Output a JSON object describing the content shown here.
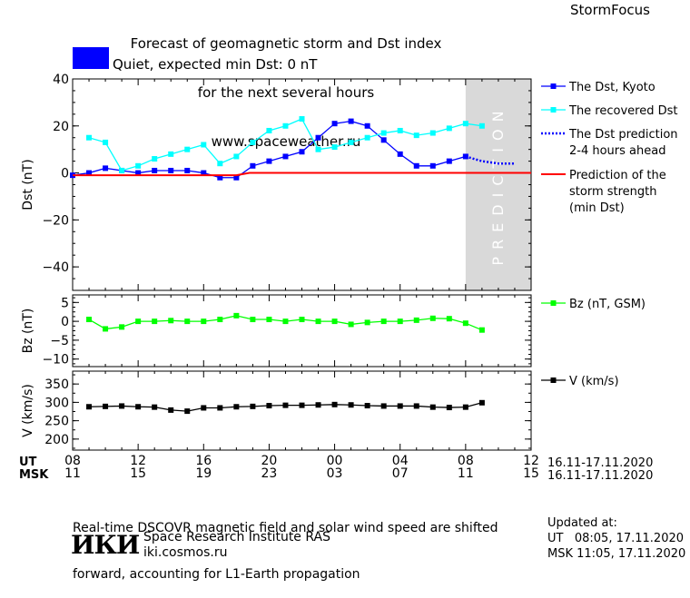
{
  "header": {
    "title_lines": [
      "Forecast of geomagnetic storm and Dst index",
      "for the next several hours",
      "www.spaceweather.ru"
    ],
    "brand": "StormFocus",
    "status_text": "Quiet, expected min Dst: 0 nT",
    "status_color": "#0000ff"
  },
  "footer": {
    "note_lines": [
      "Real-time DSCOVR magnetic field and solar wind speed are shifted",
      "forward, accounting for L1-Earth propagation"
    ],
    "institute_logo": "ИКИ",
    "institute_name": "Space Research Institute RAS",
    "institute_url": "iki.cosmos.ru",
    "updated_label": "Updated at:",
    "updated_ut": "UT   08:05, 17.11.2020",
    "updated_msk": "MSK 11:05, 17.11.2020"
  },
  "time_axis": {
    "ut_label": "UT",
    "msk_label": "MSK",
    "ut_ticks": [
      "08",
      "12",
      "16",
      "20",
      "00",
      "04",
      "08",
      "12"
    ],
    "msk_ticks": [
      "11",
      "15",
      "19",
      "23",
      "03",
      "07",
      "11",
      "15"
    ],
    "ut_range": "16.11-17.11.2020",
    "msk_range": "16.11-17.11.2020"
  },
  "chart_data": [
    {
      "type": "line",
      "ylabel": "Dst (nT)",
      "ylim": [
        -50,
        40
      ],
      "yticks": [
        40,
        20,
        0,
        -20,
        -40
      ],
      "xlim_hours": [
        0,
        28
      ],
      "prediction_band_label": "PREDICTION",
      "prediction_band_hours": [
        24,
        28
      ],
      "series": [
        {
          "name": "The Dst, Kyoto",
          "color": "#0000ff",
          "marker": "square",
          "style": "solid",
          "x": [
            0,
            1,
            2,
            3,
            4,
            5,
            6,
            7,
            8,
            9,
            10,
            11,
            12,
            13,
            14,
            15,
            16,
            17,
            18,
            19,
            20,
            21,
            22,
            23,
            24
          ],
          "y": [
            -1,
            0,
            2,
            1,
            0,
            1,
            1,
            1,
            0,
            -2,
            -2,
            3,
            5,
            7,
            9,
            15,
            21,
            22,
            20,
            14,
            8,
            3,
            3,
            5,
            7
          ]
        },
        {
          "name": "The recovered Dst",
          "color": "#00ffff",
          "marker": "square",
          "style": "solid",
          "x": [
            1,
            2,
            3,
            4,
            5,
            6,
            7,
            8,
            9,
            10,
            11,
            12,
            13,
            14,
            15,
            16,
            17,
            18,
            19,
            20,
            21,
            22,
            23,
            24,
            25
          ],
          "y": [
            15,
            13,
            1,
            3,
            6,
            8,
            10,
            12,
            4,
            7,
            13,
            18,
            20,
            23,
            10,
            11,
            13,
            15,
            17,
            18,
            16,
            17,
            19,
            21,
            20
          ]
        },
        {
          "name": "The Dst prediction 2-4 hours ahead",
          "color": "#0000ff",
          "marker": "none",
          "style": "dotted",
          "x": [
            24,
            25,
            26,
            27
          ],
          "y": [
            7,
            5,
            4,
            4
          ]
        },
        {
          "name": "Prediction of the storm strength (min Dst)",
          "color": "#ff0000",
          "marker": "none",
          "style": "solid",
          "x": [
            0,
            10,
            10.8,
            28
          ],
          "y": [
            -1,
            -1,
            0,
            0
          ]
        }
      ],
      "legend_lines": [
        [
          "The Dst, Kyoto"
        ],
        [
          "The recovered Dst"
        ],
        [
          "The Dst prediction",
          "2-4 hours ahead"
        ],
        [
          "Prediction of the",
          "storm strength",
          "(min Dst)"
        ]
      ]
    },
    {
      "type": "line",
      "ylabel": "Bz (nT)",
      "ylim": [
        -12,
        7
      ],
      "yticks": [
        5,
        0,
        -5,
        -10
      ],
      "xlim_hours": [
        0,
        28
      ],
      "series": [
        {
          "name": "Bz (nT, GSM)",
          "color": "#00ff00",
          "marker": "square",
          "style": "solid",
          "x": [
            1,
            2,
            3,
            4,
            5,
            6,
            7,
            8,
            9,
            10,
            11,
            12,
            13,
            14,
            15,
            16,
            17,
            18,
            19,
            20,
            21,
            22,
            23,
            24,
            25
          ],
          "y": [
            0.5,
            -2,
            -1.5,
            0,
            0,
            0.2,
            0,
            0,
            0.5,
            1.5,
            0.5,
            0.5,
            0,
            0.5,
            0,
            0,
            -0.8,
            -0.3,
            0,
            0,
            0.3,
            0.8,
            0.7,
            -0.5,
            -2.3
          ]
        }
      ]
    },
    {
      "type": "line",
      "ylabel": "V (km/s)",
      "ylim": [
        170,
        385
      ],
      "yticks": [
        350,
        300,
        250,
        200
      ],
      "extra_minor_ticks": [
        375,
        325,
        275,
        225,
        175
      ],
      "xlim_hours": [
        0,
        28
      ],
      "series": [
        {
          "name": "V (km/s)",
          "color": "#000000",
          "marker": "square",
          "style": "solid",
          "x": [
            1,
            2,
            3,
            4,
            5,
            6,
            7,
            8,
            9,
            10,
            11,
            12,
            13,
            14,
            15,
            16,
            17,
            18,
            19,
            20,
            21,
            22,
            23,
            24,
            25
          ],
          "y": [
            288,
            289,
            290,
            288,
            287,
            279,
            276,
            285,
            285,
            288,
            289,
            291,
            292,
            292,
            293,
            294,
            293,
            291,
            290,
            290,
            290,
            287,
            286,
            287,
            299
          ]
        }
      ]
    }
  ]
}
